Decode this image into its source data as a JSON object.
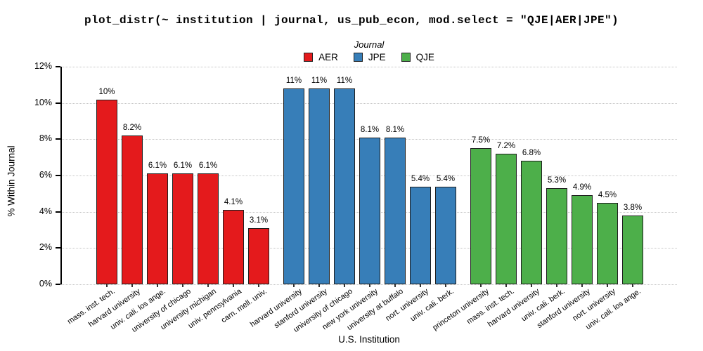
{
  "title": "plot_distr(~ institution | journal, us_pub_econ, mod.select = \"QJE|AER|JPE\")",
  "legend": {
    "title": "Journal",
    "items": [
      {
        "label": "AER",
        "color": "#e41a1c"
      },
      {
        "label": "JPE",
        "color": "#377eb8"
      },
      {
        "label": "QJE",
        "color": "#4daf4a"
      }
    ]
  },
  "axes": {
    "y_label": "% Within Journal",
    "x_label": "U.S. Institution",
    "y_tick_labels": [
      "0%",
      "2%",
      "4%",
      "6%",
      "8%",
      "10%",
      "12%"
    ],
    "y_tick_values": [
      0,
      2,
      4,
      6,
      8,
      10,
      12
    ]
  },
  "chart_data": {
    "type": "bar",
    "title": "plot_distr(~ institution | journal, us_pub_econ, mod.select = \"QJE|AER|JPE\")",
    "xlabel": "U.S. Institution",
    "ylabel": "% Within Journal",
    "ylim": [
      0,
      12
    ],
    "grid": "horizontal-dotted",
    "legend_position": "top-center",
    "series": [
      {
        "name": "AER",
        "color": "#e41a1c",
        "points": [
          {
            "x": "mass. inst. tech.",
            "y": 10.2,
            "label": "10%"
          },
          {
            "x": "harvard university",
            "y": 8.2,
            "label": "8.2%"
          },
          {
            "x": "univ. cali. los ange.",
            "y": 6.1,
            "label": "6.1%"
          },
          {
            "x": "university of chicago",
            "y": 6.1,
            "label": "6.1%"
          },
          {
            "x": "university michigan",
            "y": 6.1,
            "label": "6.1%"
          },
          {
            "x": "univ. pennsylvania",
            "y": 4.1,
            "label": "4.1%"
          },
          {
            "x": "carn. mell. univ.",
            "y": 3.1,
            "label": "3.1%"
          }
        ]
      },
      {
        "name": "JPE",
        "color": "#377eb8",
        "points": [
          {
            "x": "harvard university",
            "y": 10.8,
            "label": "11%"
          },
          {
            "x": "stanford university",
            "y": 10.8,
            "label": "11%"
          },
          {
            "x": "university of chicago",
            "y": 10.8,
            "label": "11%"
          },
          {
            "x": "new york university",
            "y": 8.1,
            "label": "8.1%"
          },
          {
            "x": "university at buffalo",
            "y": 8.1,
            "label": "8.1%"
          },
          {
            "x": "nort. university",
            "y": 5.4,
            "label": "5.4%"
          },
          {
            "x": "univ. cali. berk.",
            "y": 5.4,
            "label": "5.4%"
          }
        ]
      },
      {
        "name": "QJE",
        "color": "#4daf4a",
        "points": [
          {
            "x": "princeton university",
            "y": 7.5,
            "label": "7.5%"
          },
          {
            "x": "mass. inst. tech.",
            "y": 7.2,
            "label": "7.2%"
          },
          {
            "x": "harvard university",
            "y": 6.8,
            "label": "6.8%"
          },
          {
            "x": "univ. cali. berk.",
            "y": 5.3,
            "label": "5.3%"
          },
          {
            "x": "stanford university",
            "y": 4.9,
            "label": "4.9%"
          },
          {
            "x": "nort. university",
            "y": 4.5,
            "label": "4.5%"
          },
          {
            "x": "univ. cali. los ange.",
            "y": 3.8,
            "label": "3.8%"
          }
        ]
      }
    ]
  }
}
